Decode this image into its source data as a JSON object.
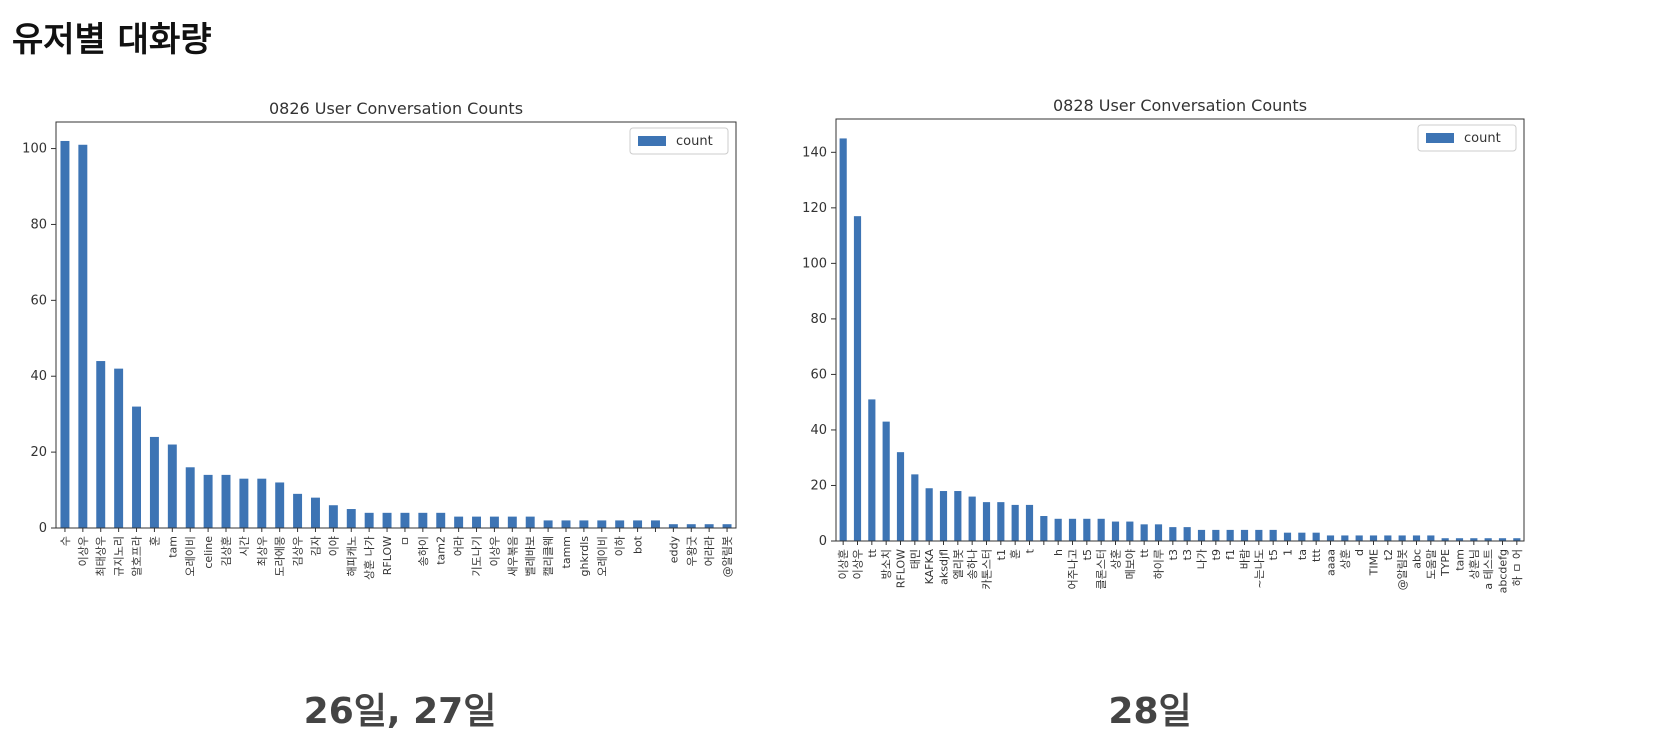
{
  "page": {
    "heading": "유저별 대화량",
    "captions": [
      "26일, 27일",
      "28일"
    ]
  },
  "chart_data": [
    {
      "type": "bar",
      "title": "0826 User Conversation Counts",
      "xlabel": "",
      "ylabel": "",
      "ylim": [
        0,
        107
      ],
      "yticks": [
        0,
        20,
        40,
        60,
        80,
        100
      ],
      "legend": {
        "placement": "top-right",
        "entries": [
          "count"
        ]
      },
      "grid": false,
      "color": "#3d74b4",
      "series": [
        {
          "name": "count",
          "categories": [
            "수",
            "이상우",
            "최태상우",
            "규지노리",
            "알호프라",
            "훈",
            "tam",
            "오레이비",
            "celine",
            "김상훈",
            "시간",
            "최상우",
            "도라에몽",
            "김상우",
            "김자",
            "이야",
            "해피캐노",
            "상훈 나가",
            "RFLOW",
            "ㅁ",
            "송하이",
            "tam2",
            "어라",
            "기도나기",
            "이상우",
            "새우볶음",
            "벨레바보",
            "캘리클웨",
            "tamm",
            "ghkrdls",
            "오레이비",
            "이하",
            "bot",
            "",
            "eddy",
            "우왕굿",
            "어라라",
            "@알림봇"
          ],
          "values": [
            102,
            101,
            44,
            42,
            32,
            24,
            22,
            16,
            14,
            14,
            13,
            13,
            12,
            9,
            8,
            6,
            5,
            4,
            4,
            4,
            4,
            4,
            3,
            3,
            3,
            3,
            3,
            2,
            2,
            2,
            2,
            2,
            2,
            2,
            1,
            1,
            1,
            1
          ]
        }
      ]
    },
    {
      "type": "bar",
      "title": "0828 User Conversation Counts",
      "xlabel": "",
      "ylabel": "",
      "ylim": [
        0,
        152
      ],
      "yticks": [
        0,
        20,
        40,
        60,
        80,
        100,
        120,
        140
      ],
      "legend": {
        "placement": "top-right",
        "entries": [
          "count"
        ]
      },
      "grid": false,
      "color": "#3d74b4",
      "series": [
        {
          "name": "count",
          "categories": [
            "이상훈",
            "이상우",
            "tt",
            "방소치",
            "RFLOW",
            "태민",
            "KAFKA",
            "aksdjfl",
            "엘리봇",
            "송하나",
            "카톤스터",
            "t1",
            "훈",
            "t",
            "",
            "h",
            "어주나고",
            "t5",
            "클론스터",
            "상훈",
            "메보야",
            "tt",
            "하이루",
            "t3",
            "t3",
            "나가",
            "t9",
            "f1",
            "바람",
            "~는나도",
            "t5",
            "1",
            "ta",
            "ttt",
            "aaaa",
            "상훈",
            "d",
            "TIME",
            "t2",
            "@알림봇",
            "abc",
            "도움말",
            "TYPE",
            "tam",
            "상훈님",
            "a 테스트",
            "abcdefg",
            "하 ㅁ 어"
          ],
          "values": [
            145,
            117,
            51,
            43,
            32,
            24,
            19,
            18,
            18,
            16,
            14,
            14,
            13,
            13,
            9,
            8,
            8,
            8,
            8,
            7,
            7,
            6,
            6,
            5,
            5,
            4,
            4,
            4,
            4,
            4,
            4,
            3,
            3,
            3,
            2,
            2,
            2,
            2,
            2,
            2,
            2,
            2,
            1,
            1,
            1,
            1,
            1,
            1
          ]
        }
      ]
    }
  ]
}
